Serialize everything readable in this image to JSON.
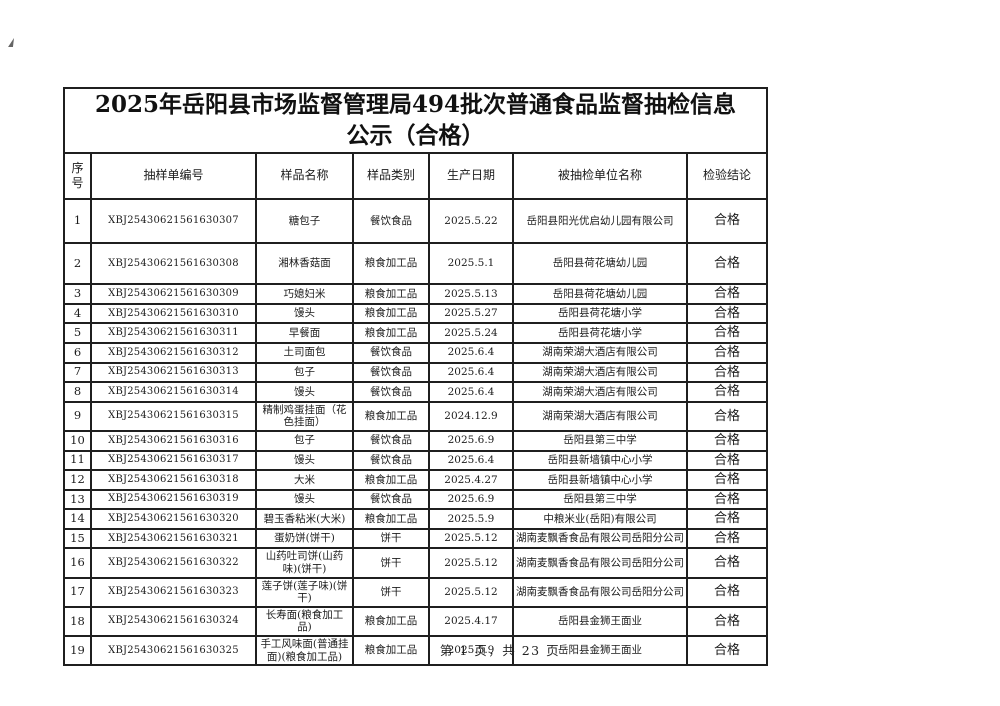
{
  "page": {
    "title": "2025年岳阳县市场监督管理局494批次普通食品监督抽检信息公示（合格）",
    "footer": "第 1 页，共 23 页"
  },
  "table": {
    "columns": [
      "序号",
      "抽样单编号",
      "样品名称",
      "样品类别",
      "生产日期",
      "被抽检单位名称",
      "检验结论"
    ],
    "rows": [
      {
        "no": "1",
        "sample_id": "XBJ25430621561630307",
        "sample_name": "糖包子",
        "category": "餐饮食品",
        "production_date": "2025.5.22",
        "inspected_unit": "岳阳县阳光优启幼儿园有限公司",
        "result": "合格"
      },
      {
        "no": "2",
        "sample_id": "XBJ25430621561630308",
        "sample_name": "湘林香菇面",
        "category": "粮食加工品",
        "production_date": "2025.5.1",
        "inspected_unit": "岳阳县荷花塘幼儿园",
        "result": "合格"
      },
      {
        "no": "3",
        "sample_id": "XBJ25430621561630309",
        "sample_name": "巧媳妇米",
        "category": "粮食加工品",
        "production_date": "2025.5.13",
        "inspected_unit": "岳阳县荷花塘幼儿园",
        "result": "合格"
      },
      {
        "no": "4",
        "sample_id": "XBJ25430621561630310",
        "sample_name": "馒头",
        "category": "粮食加工品",
        "production_date": "2025.5.27",
        "inspected_unit": "岳阳县荷花塘小学",
        "result": "合格"
      },
      {
        "no": "5",
        "sample_id": "XBJ25430621561630311",
        "sample_name": "早餐面",
        "category": "粮食加工品",
        "production_date": "2025.5.24",
        "inspected_unit": "岳阳县荷花塘小学",
        "result": "合格"
      },
      {
        "no": "6",
        "sample_id": "XBJ25430621561630312",
        "sample_name": "土司面包",
        "category": "餐饮食品",
        "production_date": "2025.6.4",
        "inspected_unit": "湖南荣湖大酒店有限公司",
        "result": "合格"
      },
      {
        "no": "7",
        "sample_id": "XBJ25430621561630313",
        "sample_name": "包子",
        "category": "餐饮食品",
        "production_date": "2025.6.4",
        "inspected_unit": "湖南荣湖大酒店有限公司",
        "result": "合格"
      },
      {
        "no": "8",
        "sample_id": "XBJ25430621561630314",
        "sample_name": "馒头",
        "category": "餐饮食品",
        "production_date": "2025.6.4",
        "inspected_unit": "湖南荣湖大酒店有限公司",
        "result": "合格"
      },
      {
        "no": "9",
        "sample_id": "XBJ25430621561630315",
        "sample_name": "精制鸡蛋挂面（花色挂面）",
        "category": "粮食加工品",
        "production_date": "2024.12.9",
        "inspected_unit": "湖南荣湖大酒店有限公司",
        "result": "合格"
      },
      {
        "no": "10",
        "sample_id": "XBJ25430621561630316",
        "sample_name": "包子",
        "category": "餐饮食品",
        "production_date": "2025.6.9",
        "inspected_unit": "岳阳县第三中学",
        "result": "合格"
      },
      {
        "no": "11",
        "sample_id": "XBJ25430621561630317",
        "sample_name": "馒头",
        "category": "餐饮食品",
        "production_date": "2025.6.4",
        "inspected_unit": "岳阳县新墙镇中心小学",
        "result": "合格"
      },
      {
        "no": "12",
        "sample_id": "XBJ25430621561630318",
        "sample_name": "大米",
        "category": "粮食加工品",
        "production_date": "2025.4.27",
        "inspected_unit": "岳阳县新墙镇中心小学",
        "result": "合格"
      },
      {
        "no": "13",
        "sample_id": "XBJ25430621561630319",
        "sample_name": "馒头",
        "category": "餐饮食品",
        "production_date": "2025.6.9",
        "inspected_unit": "岳阳县第三中学",
        "result": "合格"
      },
      {
        "no": "14",
        "sample_id": "XBJ25430621561630320",
        "sample_name": "碧玉香粘米(大米)",
        "category": "粮食加工品",
        "production_date": "2025.5.9",
        "inspected_unit": "中粮米业(岳阳)有限公司",
        "result": "合格"
      },
      {
        "no": "15",
        "sample_id": "XBJ25430621561630321",
        "sample_name": "蛋奶饼(饼干)",
        "category": "饼干",
        "production_date": "2025.5.12",
        "inspected_unit": "湖南麦飘香食品有限公司岳阳分公司",
        "result": "合格"
      },
      {
        "no": "16",
        "sample_id": "XBJ25430621561630322",
        "sample_name": "山药吐司饼(山药味)(饼干)",
        "category": "饼干",
        "production_date": "2025.5.12",
        "inspected_unit": "湖南麦飘香食品有限公司岳阳分公司",
        "result": "合格"
      },
      {
        "no": "17",
        "sample_id": "XBJ25430621561630323",
        "sample_name": "莲子饼(莲子味)(饼干)",
        "category": "饼干",
        "production_date": "2025.5.12",
        "inspected_unit": "湖南麦飘香食品有限公司岳阳分公司",
        "result": "合格"
      },
      {
        "no": "18",
        "sample_id": "XBJ25430621561630324",
        "sample_name": "长寿面(粮食加工品)",
        "category": "粮食加工品",
        "production_date": "2025.4.17",
        "inspected_unit": "岳阳县金狮王面业",
        "result": "合格"
      },
      {
        "no": "19",
        "sample_id": "XBJ25430621561630325",
        "sample_name": "手工风味面(普通挂面)(粮食加工品)",
        "category": "粮食加工品",
        "production_date": "2025.5.9",
        "inspected_unit": "岳阳县金狮王面业",
        "result": "合格"
      }
    ]
  }
}
